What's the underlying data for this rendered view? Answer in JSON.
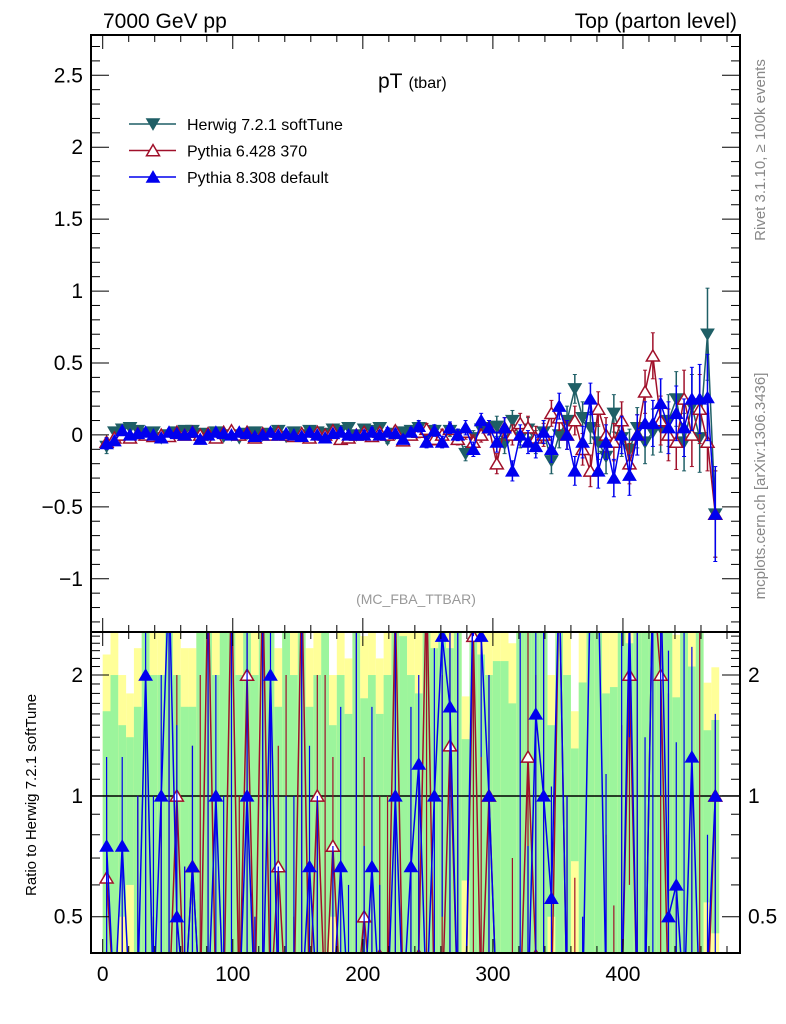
{
  "chart_data": {
    "type": "scatter",
    "header_left": "7000 GeV pp",
    "header_right": "Top (parton level)",
    "title_main": "pT",
    "title_sub": "(tbar)",
    "analysis_label": "(MC_FBA_TTBAR)",
    "side_label_top": "Rivet 3.1.10, ≥ 100k events",
    "side_label_bottom": "mcplots.cern.ch [arXiv:1306.3436]",
    "ratio_ylabel": "Ratio to Herwig 7.2.1 softTune",
    "xlim": [
      -9,
      490
    ],
    "ylim": [
      -1.37,
      2.78
    ],
    "ratio_ylim": [
      0.406,
      2.56
    ],
    "ratio_scale": "log",
    "legend_position": "top-left",
    "x_ticks": [
      "0",
      "100",
      "200",
      "300",
      "400"
    ],
    "x_tick_values": [
      0,
      100,
      200,
      300,
      400
    ],
    "y_ticks": [
      "−1",
      "−0.5",
      "0",
      "0.5",
      "1",
      "1.5",
      "2",
      "2.5"
    ],
    "y_tick_values": [
      -1,
      -0.5,
      0,
      0.5,
      1,
      1.5,
      2,
      2.5
    ],
    "ratio_ticks": [
      "0.5",
      "1",
      "2"
    ],
    "ratio_tick_values": [
      0.5,
      1,
      2
    ],
    "bin_first_center": 3,
    "bin_step": 6,
    "colors": {
      "herwig": "#1f5f66",
      "pythia6": "#a0102a",
      "pythia8": "#0000ee",
      "band_inner": "#9cf59c",
      "band_outer": "#ffff99"
    },
    "series": [
      {
        "name": "Herwig 7.2.1 softTune",
        "marker": "triangle-down-filled",
        "color_key": "herwig",
        "values": [
          -0.08,
          0.02,
          0.04,
          0.05,
          0.03,
          0.01,
          0.02,
          -0.02,
          0.0,
          0.02,
          0.03,
          0.03,
          0.01,
          0.0,
          0.02,
          -0.01,
          0.0,
          -0.02,
          0.01,
          0.02,
          0.0,
          0.01,
          0.03,
          -0.01,
          0.02,
          0.0,
          0.03,
          0.02,
          0.01,
          0.04,
          0.03,
          0.05,
          0.0,
          0.04,
          0.03,
          0.05,
          -0.03,
          0.01,
          0.02,
          0.03,
          0.05,
          0.0,
          0.03,
          -0.02,
          0.03,
          0.0,
          -0.13,
          -0.02,
          0.04,
          0.05,
          0.06,
          -0.06,
          0.1,
          -0.02,
          0.04,
          -0.05,
          0.02,
          -0.18,
          0.0,
          0.1,
          0.32,
          0.12,
          0.05,
          -0.05,
          -0.15,
          0.15,
          -0.02,
          -0.1,
          0.05,
          -0.05,
          0.02,
          0.05,
          0.1,
          0.25,
          -0.05,
          0.2,
          -0.02,
          0.7,
          -0.55
        ],
        "errors": [
          0.05,
          0.02,
          0.02,
          0.02,
          0.02,
          0.02,
          0.02,
          0.02,
          0.02,
          0.02,
          0.02,
          0.02,
          0.02,
          0.02,
          0.02,
          0.02,
          0.02,
          0.02,
          0.02,
          0.02,
          0.02,
          0.02,
          0.02,
          0.02,
          0.02,
          0.02,
          0.02,
          0.02,
          0.02,
          0.02,
          0.03,
          0.03,
          0.03,
          0.03,
          0.03,
          0.03,
          0.03,
          0.03,
          0.03,
          0.03,
          0.04,
          0.04,
          0.04,
          0.04,
          0.04,
          0.04,
          0.05,
          0.05,
          0.05,
          0.05,
          0.07,
          0.07,
          0.07,
          0.07,
          0.08,
          0.08,
          0.08,
          0.09,
          0.09,
          0.1,
          0.1,
          0.11,
          0.11,
          0.12,
          0.12,
          0.13,
          0.13,
          0.14,
          0.14,
          0.15,
          0.16,
          0.17,
          0.18,
          0.19,
          0.2,
          0.22,
          0.24,
          0.32,
          0.3
        ]
      },
      {
        "name": "Pythia 6.428 370",
        "marker": "triangle-up-open",
        "color_key": "pythia6",
        "values": [
          -0.05,
          -0.02,
          0.0,
          -0.02,
          0.01,
          0.0,
          -0.01,
          0.0,
          -0.01,
          0.02,
          0.0,
          0.02,
          0.0,
          0.01,
          -0.02,
          0.02,
          0.03,
          0.0,
          0.02,
          -0.02,
          0.01,
          0.0,
          0.02,
          0.0,
          -0.01,
          0.01,
          -0.02,
          0.02,
          0.0,
          0.03,
          -0.03,
          -0.02,
          0.0,
          0.02,
          -0.01,
          0.02,
          0.0,
          0.03,
          -0.04,
          0.0,
          0.02,
          0.04,
          -0.03,
          0.0,
          0.04,
          -0.03,
          0.02,
          -0.05,
          0.0,
          0.05,
          -0.2,
          0.05,
          0.0,
          0.08,
          0.05,
          -0.02,
          0.0,
          0.15,
          0.12,
          0.0,
          0.1,
          -0.1,
          -0.25,
          0.18,
          0.0,
          -0.05,
          0.1,
          -0.2,
          0.0,
          0.3,
          0.55,
          0.1,
          0.0,
          -0.05,
          0.25,
          0.0,
          0.18,
          -0.05,
          -0.55
        ],
        "errors": [
          0.03,
          0.02,
          0.02,
          0.02,
          0.02,
          0.02,
          0.02,
          0.02,
          0.02,
          0.02,
          0.02,
          0.02,
          0.02,
          0.02,
          0.02,
          0.02,
          0.02,
          0.02,
          0.02,
          0.02,
          0.02,
          0.02,
          0.02,
          0.02,
          0.02,
          0.02,
          0.02,
          0.02,
          0.02,
          0.02,
          0.03,
          0.03,
          0.03,
          0.03,
          0.03,
          0.03,
          0.03,
          0.03,
          0.03,
          0.03,
          0.04,
          0.04,
          0.04,
          0.04,
          0.04,
          0.04,
          0.05,
          0.05,
          0.05,
          0.05,
          0.07,
          0.07,
          0.07,
          0.07,
          0.08,
          0.08,
          0.08,
          0.09,
          0.09,
          0.1,
          0.1,
          0.11,
          0.11,
          0.12,
          0.12,
          0.13,
          0.13,
          0.14,
          0.14,
          0.15,
          0.16,
          0.17,
          0.18,
          0.19,
          0.2,
          0.22,
          0.24,
          0.2,
          0.3
        ]
      },
      {
        "name": "Pythia 8.308 default",
        "marker": "triangle-up-filled",
        "color_key": "pythia8",
        "values": [
          -0.06,
          -0.04,
          0.03,
          0.0,
          0.01,
          0.02,
          0.0,
          -0.02,
          0.02,
          0.01,
          0.0,
          0.02,
          -0.03,
          0.0,
          0.02,
          0.01,
          0.0,
          0.02,
          0.01,
          -0.01,
          0.0,
          0.02,
          0.0,
          0.01,
          0.0,
          -0.01,
          0.02,
          0.0,
          -0.02,
          0.01,
          0.02,
          0.0,
          0.0,
          0.0,
          0.02,
          0.0,
          0.02,
          0.01,
          -0.03,
          0.02,
          0.06,
          -0.05,
          0.03,
          -0.05,
          0.05,
          0.0,
          0.05,
          -0.1,
          0.1,
          0.05,
          -0.05,
          0.05,
          -0.25,
          0.0,
          -0.05,
          -0.08,
          0.02,
          -0.1,
          0.2,
          0.0,
          -0.25,
          -0.05,
          0.25,
          -0.25,
          -0.05,
          -0.3,
          0.0,
          -0.28,
          0.0,
          0.08,
          0.08,
          0.22,
          0.05,
          0.15,
          0.05,
          0.25,
          0.25,
          0.26,
          -0.55
        ],
        "errors": [
          0.04,
          0.02,
          0.02,
          0.02,
          0.02,
          0.02,
          0.02,
          0.02,
          0.02,
          0.02,
          0.02,
          0.02,
          0.02,
          0.02,
          0.02,
          0.02,
          0.02,
          0.02,
          0.02,
          0.02,
          0.02,
          0.02,
          0.02,
          0.02,
          0.02,
          0.02,
          0.02,
          0.02,
          0.02,
          0.02,
          0.03,
          0.03,
          0.03,
          0.03,
          0.03,
          0.03,
          0.03,
          0.03,
          0.03,
          0.03,
          0.04,
          0.04,
          0.04,
          0.04,
          0.04,
          0.04,
          0.05,
          0.05,
          0.05,
          0.05,
          0.07,
          0.07,
          0.07,
          0.07,
          0.08,
          0.08,
          0.08,
          0.09,
          0.09,
          0.1,
          0.1,
          0.11,
          0.11,
          0.12,
          0.12,
          0.13,
          0.13,
          0.14,
          0.14,
          0.15,
          0.16,
          0.17,
          0.18,
          0.19,
          0.2,
          0.22,
          0.24,
          0.3,
          0.33
        ]
      }
    ]
  }
}
